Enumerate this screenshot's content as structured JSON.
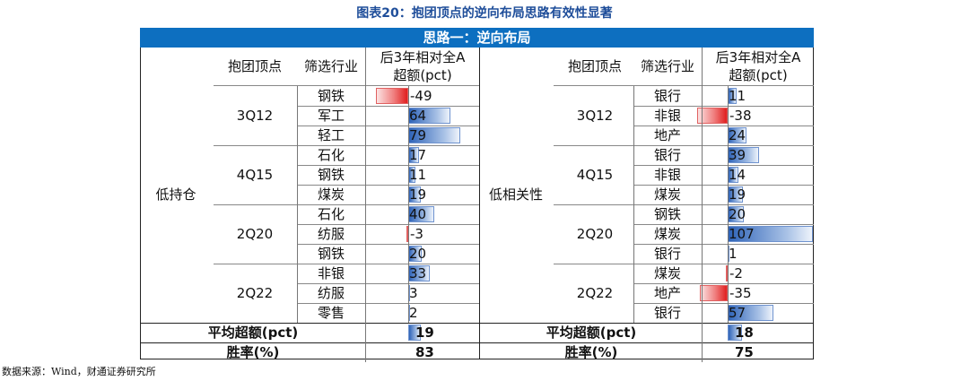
{
  "title": "图表20：抱团顶点的逆向布局思路有效性显著",
  "band": "思路一：逆向布局",
  "headers": {
    "peak": "抱团顶点",
    "industry": "筛选行业",
    "excess_line1": "后3年相对全A",
    "excess_line2": "超额(pct)"
  },
  "left": {
    "label": "低持仓",
    "groups": [
      {
        "peak": "3Q12",
        "rows": [
          {
            "industry": "钢铁",
            "value": -49
          },
          {
            "industry": "军工",
            "value": 64
          },
          {
            "industry": "轻工",
            "value": 79
          }
        ]
      },
      {
        "peak": "4Q15",
        "rows": [
          {
            "industry": "石化",
            "value": 17
          },
          {
            "industry": "钢铁",
            "value": 11
          },
          {
            "industry": "煤炭",
            "value": 19
          }
        ]
      },
      {
        "peak": "2Q20",
        "rows": [
          {
            "industry": "石化",
            "value": 40
          },
          {
            "industry": "纺服",
            "value": -3
          },
          {
            "industry": "钢铁",
            "value": 20
          }
        ]
      },
      {
        "peak": "2Q22",
        "rows": [
          {
            "industry": "非银",
            "value": 33
          },
          {
            "industry": "纺服",
            "value": 3
          },
          {
            "industry": "零售",
            "value": 2
          }
        ]
      }
    ],
    "avg_label": "平均超额(pct)",
    "avg": 19,
    "win_label": "胜率(%)",
    "win": 83
  },
  "right": {
    "label": "低相关性",
    "groups": [
      {
        "peak": "3Q12",
        "rows": [
          {
            "industry": "银行",
            "value": 11
          },
          {
            "industry": "非银",
            "value": -38
          },
          {
            "industry": "地产",
            "value": 24
          }
        ]
      },
      {
        "peak": "4Q15",
        "rows": [
          {
            "industry": "银行",
            "value": 39
          },
          {
            "industry": "非银",
            "value": 14
          },
          {
            "industry": "煤炭",
            "value": 19
          }
        ]
      },
      {
        "peak": "2Q20",
        "rows": [
          {
            "industry": "钢铁",
            "value": 20
          },
          {
            "industry": "煤炭",
            "value": 107
          },
          {
            "industry": "银行",
            "value": 1
          }
        ]
      },
      {
        "peak": "2Q22",
        "rows": [
          {
            "industry": "煤炭",
            "value": -2
          },
          {
            "industry": "地产",
            "value": -35
          },
          {
            "industry": "银行",
            "value": 57
          }
        ]
      }
    ],
    "avg_label": "平均超额(pct)",
    "avg": 18,
    "win_label": "胜率(%)",
    "win": 75
  },
  "source": "数据来源：Wind，财通证券研究所",
  "colors": {
    "band": "#0d6fc0",
    "title": "#1f4e9a",
    "positive": "#2e63b8",
    "negative": "#e01e1e"
  }
}
